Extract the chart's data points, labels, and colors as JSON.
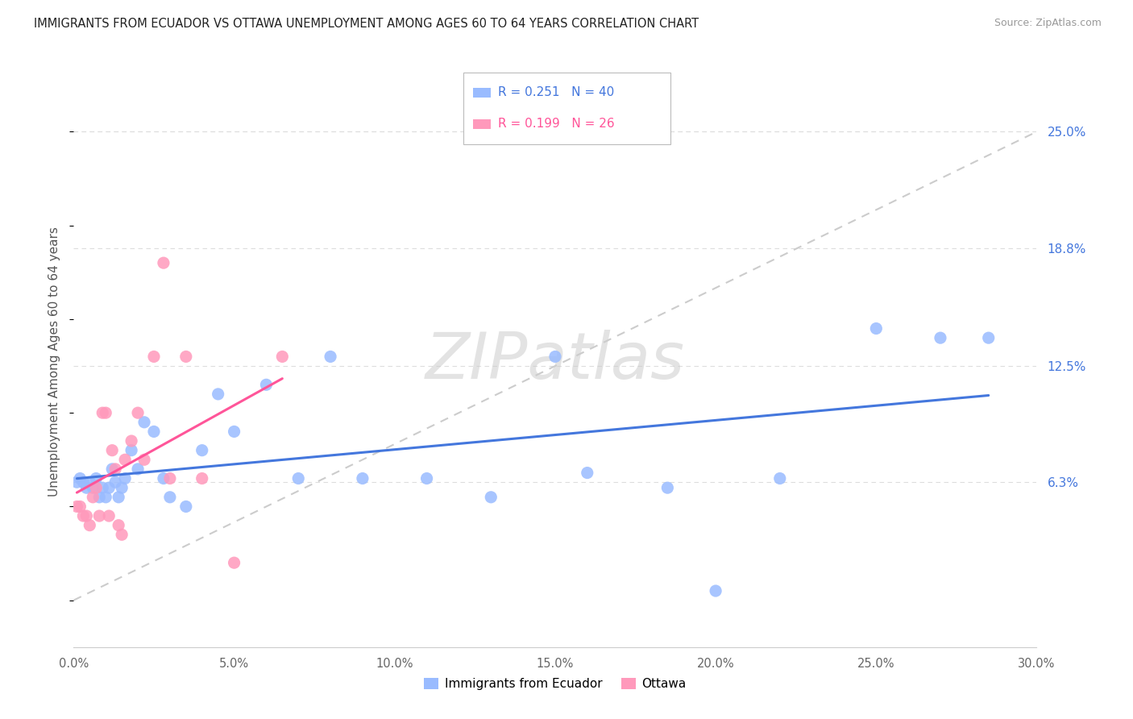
{
  "title": "IMMIGRANTS FROM ECUADOR VS OTTAWA UNEMPLOYMENT AMONG AGES 60 TO 64 YEARS CORRELATION CHART",
  "source": "Source: ZipAtlas.com",
  "ylabel": "Unemployment Among Ages 60 to 64 years",
  "xlim": [
    0,
    0.3
  ],
  "ylim": [
    -0.025,
    0.28
  ],
  "xtick_labels": [
    "0.0%",
    "5.0%",
    "10.0%",
    "15.0%",
    "20.0%",
    "25.0%",
    "30.0%"
  ],
  "xtick_vals": [
    0.0,
    0.05,
    0.1,
    0.15,
    0.2,
    0.25,
    0.3
  ],
  "right_ytick_labels": [
    "25.0%",
    "18.8%",
    "12.5%",
    "6.3%"
  ],
  "right_ytick_vals": [
    0.25,
    0.188,
    0.125,
    0.063
  ],
  "legend1_label": "Immigrants from Ecuador",
  "legend2_label": "Ottawa",
  "R1": "R = 0.251",
  "N1": "N = 40",
  "R2": "R = 0.199",
  "N2": "N = 26",
  "color_blue": "#99BBFF",
  "color_pink": "#FF99BB",
  "color_trendline_blue": "#4477DD",
  "color_trendline_pink": "#FF5599",
  "blue_x": [
    0.001,
    0.002,
    0.003,
    0.004,
    0.005,
    0.006,
    0.007,
    0.008,
    0.009,
    0.01,
    0.011,
    0.012,
    0.013,
    0.014,
    0.015,
    0.016,
    0.018,
    0.02,
    0.022,
    0.025,
    0.028,
    0.03,
    0.035,
    0.04,
    0.045,
    0.05,
    0.06,
    0.07,
    0.08,
    0.09,
    0.11,
    0.13,
    0.15,
    0.16,
    0.185,
    0.2,
    0.22,
    0.25,
    0.27,
    0.285
  ],
  "blue_y": [
    0.063,
    0.065,
    0.063,
    0.06,
    0.063,
    0.06,
    0.065,
    0.055,
    0.06,
    0.055,
    0.06,
    0.07,
    0.063,
    0.055,
    0.06,
    0.065,
    0.08,
    0.07,
    0.095,
    0.09,
    0.065,
    0.055,
    0.05,
    0.08,
    0.11,
    0.09,
    0.115,
    0.065,
    0.13,
    0.065,
    0.065,
    0.055,
    0.13,
    0.068,
    0.06,
    0.005,
    0.065,
    0.145,
    0.14,
    0.14
  ],
  "pink_x": [
    0.001,
    0.002,
    0.003,
    0.004,
    0.005,
    0.006,
    0.007,
    0.008,
    0.009,
    0.01,
    0.011,
    0.012,
    0.013,
    0.014,
    0.015,
    0.016,
    0.018,
    0.02,
    0.022,
    0.025,
    0.028,
    0.03,
    0.035,
    0.04,
    0.05,
    0.065
  ],
  "pink_y": [
    0.05,
    0.05,
    0.045,
    0.045,
    0.04,
    0.055,
    0.06,
    0.045,
    0.1,
    0.1,
    0.045,
    0.08,
    0.07,
    0.04,
    0.035,
    0.075,
    0.085,
    0.1,
    0.075,
    0.13,
    0.18,
    0.065,
    0.13,
    0.065,
    0.02,
    0.13
  ]
}
